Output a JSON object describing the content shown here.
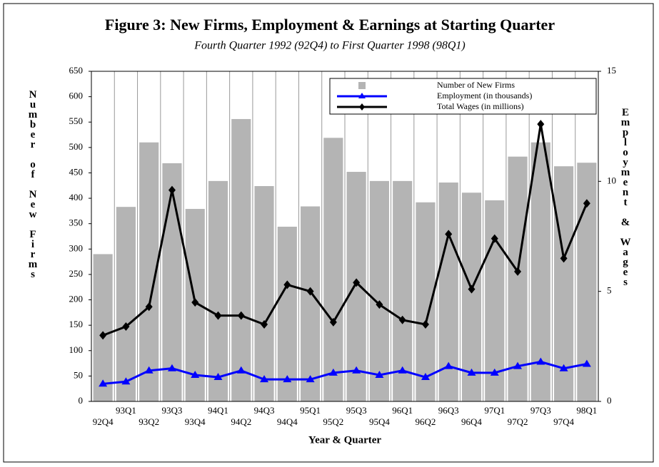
{
  "chart_data": {
    "type": "bar-line",
    "title": "Figure 3: New Firms, Employment & Earnings at Starting Quarter",
    "subtitle": "Fourth Quarter 1992 (92Q4) to First Quarter 1998 (98Q1)",
    "x_label": "Year & Quarter",
    "y_label": "Number of New Firms",
    "y2_label": "Employment & Wages",
    "categories": [
      "92Q4",
      "93Q1",
      "93Q2",
      "93Q3",
      "93Q4",
      "94Q1",
      "94Q2",
      "94Q3",
      "94Q4",
      "95Q1",
      "95Q2",
      "95Q3",
      "95Q4",
      "96Q1",
      "96Q2",
      "96Q3",
      "96Q4",
      "97Q1",
      "97Q2",
      "97Q3",
      "97Q4",
      "98Q1"
    ],
    "series": [
      {
        "name": "Number of New Firms",
        "color": "#b4b4b4",
        "kind": "bar",
        "axis": "y",
        "values": [
          290,
          383,
          510,
          469,
          379,
          434,
          556,
          424,
          344,
          384,
          519,
          452,
          434,
          434,
          392,
          431,
          411,
          396,
          482,
          510,
          463,
          470
        ]
      },
      {
        "name": "Employment (in thousands)",
        "color": "#0000ff",
        "kind": "line",
        "marker": "triangle",
        "axis": "y2",
        "values": [
          0.8,
          0.9,
          1.4,
          1.5,
          1.2,
          1.1,
          1.4,
          1.0,
          1.0,
          1.0,
          1.3,
          1.4,
          1.2,
          1.4,
          1.1,
          1.6,
          1.3,
          1.3,
          1.6,
          1.8,
          1.5,
          1.7
        ]
      },
      {
        "name": "Total Wages (in millions)",
        "color": "#000000",
        "kind": "line",
        "marker": "diamond",
        "axis": "y2",
        "values": [
          3.0,
          3.4,
          4.3,
          9.6,
          4.5,
          3.9,
          3.9,
          3.5,
          5.3,
          5.0,
          3.6,
          5.4,
          4.4,
          3.7,
          3.5,
          7.6,
          5.1,
          7.4,
          5.9,
          12.6,
          6.5,
          9.0
        ]
      }
    ],
    "ylim": [
      0,
      650
    ],
    "yticks": [
      0,
      50,
      100,
      150,
      200,
      250,
      300,
      350,
      400,
      450,
      500,
      550,
      600,
      650
    ],
    "y2lim": [
      0,
      15
    ],
    "y2ticks": [
      0,
      5,
      10,
      15
    ],
    "grid": "vertical",
    "legend": "upper right"
  }
}
